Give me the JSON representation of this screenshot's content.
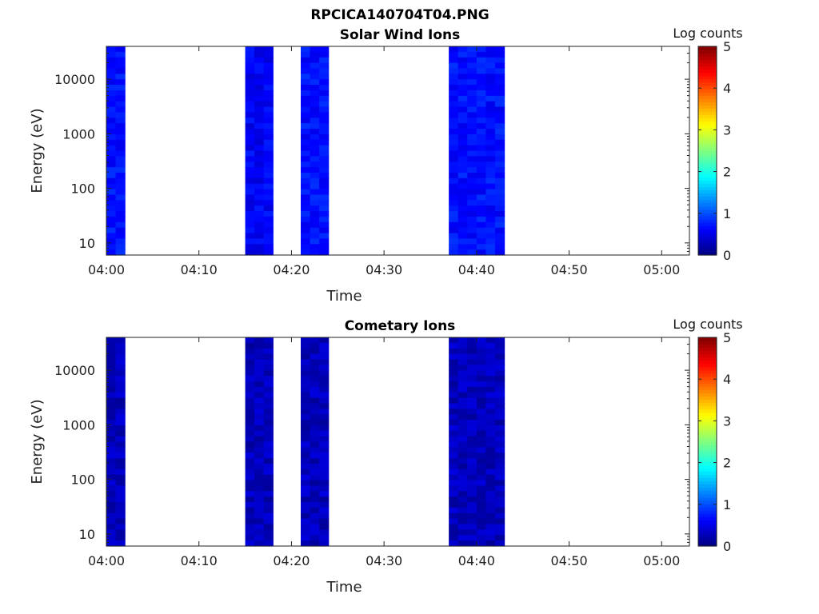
{
  "figure_title": "RPCICA140704T04.PNG",
  "chart_data": [
    {
      "type": "heatmap",
      "title": "Solar Wind Ions",
      "xlabel": "Time",
      "ylabel": "Energy (eV)",
      "y_scale": "log",
      "xlim": [
        "04:00",
        "05:03"
      ],
      "ylim": [
        6,
        40000
      ],
      "x_ticks": [
        "04:00",
        "04:10",
        "04:20",
        "04:30",
        "04:40",
        "04:50",
        "05:00"
      ],
      "y_ticks": [
        "10",
        "100",
        "1000",
        "10000"
      ],
      "colorbar": {
        "label": "Log counts",
        "min": 0,
        "max": 5,
        "ticks": [
          "0",
          "1",
          "2",
          "3",
          "4",
          "5"
        ],
        "colormap": "jet"
      },
      "data_blocks": [
        {
          "start": "04:00",
          "end": "04:02",
          "log_counts": 0.7
        },
        {
          "start": "04:15",
          "end": "04:18",
          "log_counts": 0.6
        },
        {
          "start": "04:21",
          "end": "04:24",
          "log_counts": 0.7
        },
        {
          "start": "04:37",
          "end": "04:43",
          "log_counts": 0.7
        }
      ]
    },
    {
      "type": "heatmap",
      "title": "Cometary Ions",
      "xlabel": "Time",
      "ylabel": "Energy (eV)",
      "y_scale": "log",
      "xlim": [
        "04:00",
        "05:03"
      ],
      "ylim": [
        6,
        40000
      ],
      "x_ticks": [
        "04:00",
        "04:10",
        "04:20",
        "04:30",
        "04:40",
        "04:50",
        "05:00"
      ],
      "y_ticks": [
        "10",
        "100",
        "1000",
        "10000"
      ],
      "colorbar": {
        "label": "Log counts",
        "min": 0,
        "max": 5,
        "ticks": [
          "0",
          "1",
          "2",
          "3",
          "4",
          "5"
        ],
        "colormap": "jet"
      },
      "data_blocks": [
        {
          "start": "04:00",
          "end": "04:02",
          "log_counts": 0.3
        },
        {
          "start": "04:15",
          "end": "04:18",
          "log_counts": 0.3
        },
        {
          "start": "04:21",
          "end": "04:24",
          "log_counts": 0.3
        },
        {
          "start": "04:37",
          "end": "04:43",
          "log_counts": 0.3
        }
      ]
    }
  ]
}
